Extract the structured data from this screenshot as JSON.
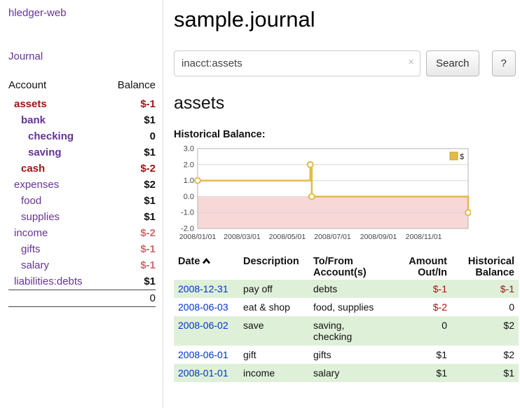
{
  "colors": {
    "link_purple": "#663399",
    "negative_red": "#a01515",
    "negative_light": "#c96a6a",
    "date_blue": "#0033cc",
    "row_green": "#dff0d8",
    "chart_gold": "#e3bb4a",
    "chart_gold_dark": "#c9a12e",
    "chart_negative_bg": "#f8d7d7"
  },
  "sidebar": {
    "app_title": "hledger-web",
    "journal_link": "Journal",
    "accounts": {
      "account_header": "Account",
      "balance_header": "Balance",
      "rows": [
        {
          "name": "assets",
          "balance": "$-1",
          "indent": 1,
          "bold": true,
          "name_color": "red",
          "balance_color": "red"
        },
        {
          "name": "bank",
          "balance": "$1",
          "indent": 2,
          "bold": true,
          "name_color": "purple",
          "balance_color": "black"
        },
        {
          "name": "checking",
          "balance": "0",
          "indent": 3,
          "bold": true,
          "name_color": "purple",
          "balance_color": "black"
        },
        {
          "name": "saving",
          "balance": "$1",
          "indent": 3,
          "bold": true,
          "name_color": "purple",
          "balance_color": "black"
        },
        {
          "name": "cash",
          "balance": "$-2",
          "indent": 2,
          "bold": true,
          "name_color": "red",
          "balance_color": "red"
        },
        {
          "name": "expenses",
          "balance": "$2",
          "indent": 1,
          "bold": false,
          "name_color": "purple",
          "balance_color": "black"
        },
        {
          "name": "food",
          "balance": "$1",
          "indent": 2,
          "bold": false,
          "name_color": "purple",
          "balance_color": "black"
        },
        {
          "name": "supplies",
          "balance": "$1",
          "indent": 2,
          "bold": false,
          "name_color": "purple",
          "balance_color": "black"
        },
        {
          "name": "income",
          "balance": "$-2",
          "indent": 1,
          "bold": false,
          "name_color": "purple",
          "balance_color": "pink"
        },
        {
          "name": "gifts",
          "balance": "$-1",
          "indent": 2,
          "bold": false,
          "name_color": "purple",
          "balance_color": "pink"
        },
        {
          "name": "salary",
          "balance": "$-1",
          "indent": 2,
          "bold": false,
          "name_color": "purple",
          "balance_color": "pink"
        },
        {
          "name": "liabilities:debts",
          "balance": "$1",
          "indent": 1,
          "bold": false,
          "name_color": "purple",
          "balance_color": "black"
        }
      ],
      "total": "0"
    }
  },
  "main": {
    "title": "sample.journal",
    "search": {
      "value": "inacct:assets",
      "clear_icon": "×",
      "button": "Search",
      "help": "?"
    },
    "section_title": "assets",
    "chart_label": "Historical Balance:"
  },
  "chart_data": {
    "type": "line",
    "title": "Historical Balance",
    "legend": [
      "$"
    ],
    "legend_position": "top-right",
    "ylim": [
      -2.0,
      3.0
    ],
    "yticks": [
      3.0,
      2.0,
      1.0,
      0.0,
      -1.0,
      -2.0
    ],
    "xtick_labels": [
      "2008/01/01",
      "2008/03/01",
      "2008/05/01",
      "2008/07/01",
      "2008/09/01",
      "2008/11/01"
    ],
    "xtick_days": [
      0,
      60,
      121,
      182,
      244,
      305
    ],
    "xlim_days": [
      0,
      365
    ],
    "grid": "horizontal",
    "negative_region_color": "#f8d7d7",
    "line_color": "#e3bb4a",
    "series": [
      {
        "name": "$",
        "points_day_value": [
          [
            0,
            1
          ],
          [
            152,
            1
          ],
          [
            152,
            2
          ],
          [
            154,
            2
          ],
          [
            154,
            0
          ],
          [
            365,
            0
          ],
          [
            365,
            -1
          ]
        ],
        "markers_day_value": [
          [
            0,
            1
          ],
          [
            152,
            2
          ],
          [
            154,
            0
          ],
          [
            365,
            -1
          ]
        ],
        "data_by_date": [
          {
            "date": "2008-01-01",
            "balance": 1
          },
          {
            "date": "2008-06-01",
            "balance": 2
          },
          {
            "date": "2008-06-02",
            "balance": 2
          },
          {
            "date": "2008-06-03",
            "balance": 0
          },
          {
            "date": "2008-12-31",
            "balance": -1
          }
        ]
      }
    ]
  },
  "register": {
    "headers": {
      "date": "Date",
      "description": "Description",
      "account": "To/From Account(s)",
      "amount": "Amount Out/In",
      "balance": "Historical Balance"
    },
    "rows": [
      {
        "date": "2008-12-31",
        "description": "pay off",
        "account": "debts",
        "amount": "$-1",
        "amount_color": "red",
        "balance": "$-1",
        "balance_color": "red",
        "shaded": true
      },
      {
        "date": "2008-06-03",
        "description": "eat & shop",
        "account": "food, supplies",
        "amount": "$-2",
        "amount_color": "red",
        "balance": "0",
        "balance_color": "black",
        "shaded": false
      },
      {
        "date": "2008-06-02",
        "description": "save",
        "account": "saving,\nchecking",
        "amount": "0",
        "amount_color": "black",
        "balance": "$2",
        "balance_color": "black",
        "shaded": true
      },
      {
        "date": "2008-06-01",
        "description": "gift",
        "account": "gifts",
        "amount": "$1",
        "amount_color": "black",
        "balance": "$2",
        "balance_color": "black",
        "shaded": false
      },
      {
        "date": "2008-01-01",
        "description": "income",
        "account": "salary",
        "amount": "$1",
        "amount_color": "black",
        "balance": "$1",
        "balance_color": "black",
        "shaded": true
      }
    ]
  }
}
